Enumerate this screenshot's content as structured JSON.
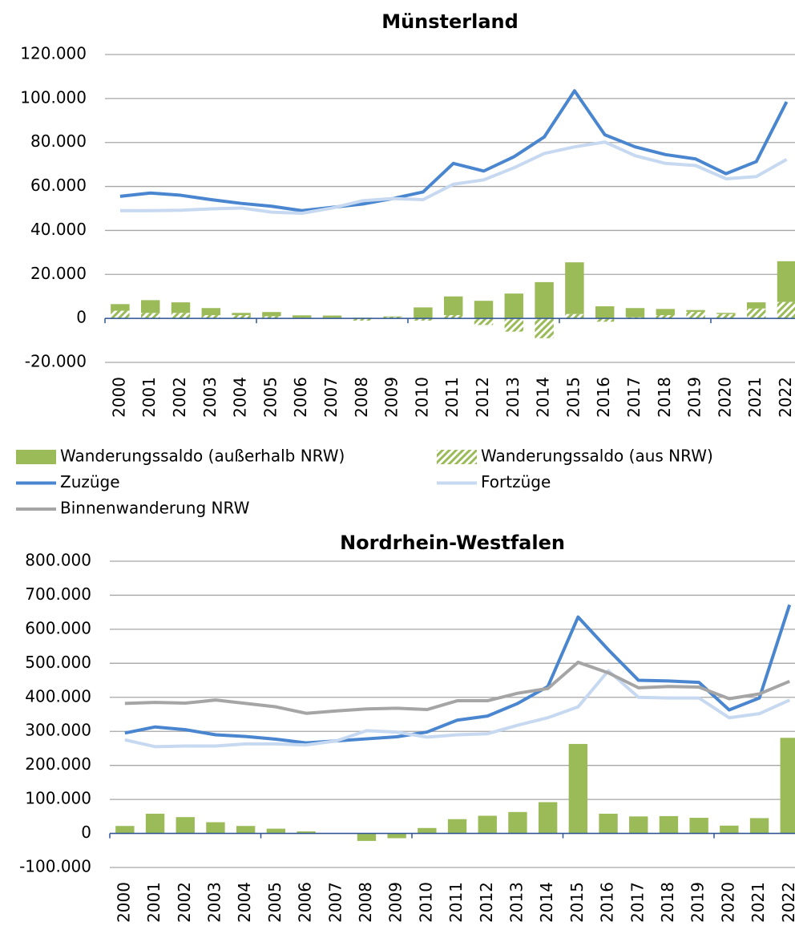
{
  "chart_data": [
    {
      "type": "combo",
      "title": "Münsterland",
      "categories": [
        "2000",
        "2001",
        "2002",
        "2003",
        "2004",
        "2005",
        "2006",
        "2007",
        "2008",
        "2009",
        "2010",
        "2011",
        "2012",
        "2013",
        "2014",
        "2015",
        "2016",
        "2017",
        "2018",
        "2019",
        "2020",
        "2021",
        "2022"
      ],
      "ylim": [
        -20000,
        120000
      ],
      "yticks": [
        {
          "value": 120000,
          "label": "120.000"
        },
        {
          "value": 100000,
          "label": "100.000"
        },
        {
          "value": 80000,
          "label": "80.000"
        },
        {
          "value": 60000,
          "label": "60.000"
        },
        {
          "value": 40000,
          "label": "40.000"
        },
        {
          "value": 20000,
          "label": "20.000"
        },
        0,
        {
          "value": -20000,
          "label": "-20.000"
        }
      ],
      "grid": true,
      "series": [
        {
          "name": "Wanderungssaldo (außerhalb NRW)",
          "kind": "bar",
          "color": "#9bbb59",
          "values": [
            3000,
            5800,
            4800,
            3200,
            1000,
            1900,
            1100,
            1000,
            300,
            300,
            5000,
            8500,
            8000,
            11300,
            16500,
            23500,
            5500,
            4200,
            2800,
            800,
            500,
            2800,
            18500
          ]
        },
        {
          "name": "Wanderungssaldo (aus NRW)",
          "kind": "bar",
          "pattern": "hatch",
          "color": "#9bbb59",
          "values": [
            3500,
            2500,
            2500,
            1500,
            1500,
            1000,
            300,
            300,
            -1000,
            600,
            -1000,
            1500,
            -3000,
            -6000,
            -9000,
            2000,
            -1500,
            500,
            1500,
            3000,
            2000,
            4500,
            7500
          ]
        },
        {
          "name": "Zuzüge",
          "kind": "line",
          "color": "#4a86cf",
          "values": [
            55500,
            57000,
            56000,
            54000,
            52300,
            51000,
            49000,
            50500,
            52000,
            54500,
            57500,
            70500,
            67000,
            73500,
            82500,
            103500,
            83500,
            78000,
            74500,
            72500,
            65800,
            71300,
            98500
          ]
        },
        {
          "name": "Fortzüge",
          "kind": "line",
          "color": "#c6d9f1",
          "values": [
            49000,
            49000,
            49200,
            49800,
            50200,
            48300,
            47800,
            50200,
            53500,
            54500,
            54000,
            61000,
            63000,
            68500,
            75000,
            78000,
            80200,
            74000,
            70500,
            69500,
            63500,
            64500,
            72300
          ]
        }
      ]
    },
    {
      "type": "combo",
      "title": "Nordrhein-Westfalen",
      "categories": [
        "2000",
        "2001",
        "2002",
        "2003",
        "2004",
        "2005",
        "2006",
        "2007",
        "2008",
        "2009",
        "2010",
        "2011",
        "2012",
        "2013",
        "2014",
        "2015",
        "2016",
        "2017",
        "2018",
        "2019",
        "2020",
        "2021",
        "2022"
      ],
      "ylim": [
        -100000,
        800000
      ],
      "yticks": [
        {
          "value": 800000,
          "label": "800.000"
        },
        {
          "value": 700000,
          "label": "700.000"
        },
        {
          "value": 600000,
          "label": "600.000"
        },
        {
          "value": 500000,
          "label": "500.000"
        },
        {
          "value": 400000,
          "label": "400.000"
        },
        {
          "value": 300000,
          "label": "300.000"
        },
        {
          "value": 200000,
          "label": "200.000"
        },
        {
          "value": 100000,
          "label": "100.000"
        },
        0,
        {
          "value": -100000,
          "label": "-100.000"
        }
      ],
      "grid": true,
      "series": [
        {
          "name": "Wanderungssaldo (außerhalb NRW)",
          "kind": "bar",
          "color": "#9bbb59",
          "values": [
            22000,
            58000,
            48000,
            33000,
            22000,
            14000,
            6000,
            1000,
            -22000,
            -14000,
            16000,
            42000,
            52000,
            63000,
            92000,
            263000,
            58000,
            50000,
            51000,
            46000,
            23000,
            45000,
            281000
          ]
        },
        {
          "name": "Zuzüge",
          "kind": "line",
          "color": "#4a86cf",
          "values": [
            295000,
            313000,
            305000,
            290000,
            285000,
            277000,
            266000,
            272000,
            278000,
            284000,
            298000,
            333000,
            345000,
            382000,
            432000,
            636000,
            540000,
            450000,
            448000,
            444000,
            363000,
            398000,
            672000
          ]
        },
        {
          "name": "Fortzüge",
          "kind": "line",
          "color": "#c6d9f1",
          "values": [
            275000,
            255000,
            257000,
            257000,
            263000,
            263000,
            260000,
            272000,
            302000,
            298000,
            283000,
            290000,
            293000,
            318000,
            340000,
            372000,
            478000,
            400000,
            398000,
            398000,
            340000,
            352000,
            392000
          ]
        },
        {
          "name": "Binnenwanderung NRW",
          "kind": "line",
          "color": "#a5a5a5",
          "values": [
            382000,
            385000,
            383000,
            392000,
            382000,
            372000,
            353000,
            360000,
            366000,
            368000,
            364000,
            390000,
            390000,
            412000,
            426000,
            503000,
            472000,
            428000,
            432000,
            430000,
            396000,
            410000,
            447000
          ]
        }
      ]
    }
  ]
}
